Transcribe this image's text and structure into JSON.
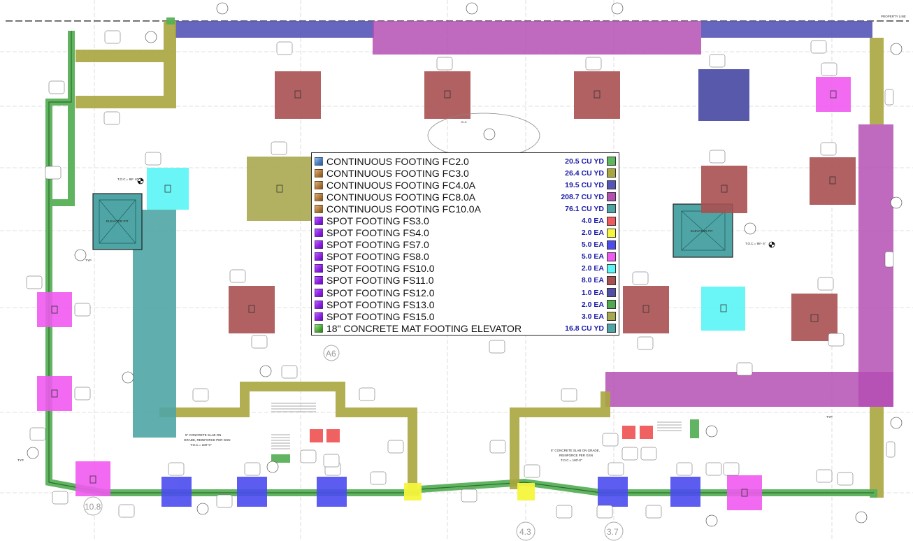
{
  "header": {
    "property_line": "PROPERTY LINE"
  },
  "grid_labels": {
    "a6": "A6",
    "n10_8": "10.8",
    "n4_3": "4.3",
    "n3_7": "3.7"
  },
  "plan_notes": {
    "elev_pit_left": "ELEVATOR PIT",
    "elev_pit_right": "ELEVATOR PIT",
    "toc_left": "T.O.C.= 98'- 6\"",
    "toc_right": "T.O.C.= 98'- 6\"",
    "slab_left_1": "5\" CONCRETE SLAB ON",
    "slab_left_2": "GRADE, REINFORCE PER GSN",
    "slab_left_3": "T.O.C.= 100'-0\"",
    "slab_right_1": "5\" CONCRETE SLAB ON GRADE,",
    "slab_right_2": "REINFORCE PER GSN",
    "slab_right_3": "T.O.C.= 100'-0\"",
    "cj": "C.J.",
    "typ": "TYP"
  },
  "legend": {
    "rows": [
      {
        "label": "CONTINUOUS FOOTING FC2.0",
        "qty": "20.5 CU YD",
        "icon": "blue-cube-icon",
        "swatch": "#5cb85c"
      },
      {
        "label": "CONTINUOUS FOOTING FC3.0",
        "qty": "26.4 CU YD",
        "icon": "brown-cube-icon",
        "swatch": "#a8a63e"
      },
      {
        "label": "CONTINUOUS FOOTING FC4.0A",
        "qty": "19.5 CU YD",
        "icon": "brown-cube-icon",
        "swatch": "#5555b8"
      },
      {
        "label": "CONTINUOUS FOOTING FC8.0A",
        "qty": "208.7 CU YD",
        "icon": "brown-cube-icon",
        "swatch": "#b44fb4"
      },
      {
        "label": "CONTINUOUS FOOTING FC10.0A",
        "qty": "76.1 CU YD",
        "icon": "brown-cube-icon",
        "swatch": "#4fa5a5"
      },
      {
        "label": "SPOT FOOTING FS3.0",
        "qty": "4.0 EA",
        "icon": "purple-square-icon",
        "swatch": "#f05a5a"
      },
      {
        "label": "SPOT FOOTING FS4.0",
        "qty": "2.0 EA",
        "icon": "purple-square-icon",
        "swatch": "#f5f53c"
      },
      {
        "label": "SPOT FOOTING FS7.0",
        "qty": "5.0 EA",
        "icon": "purple-square-icon",
        "swatch": "#4b4bf0"
      },
      {
        "label": "SPOT FOOTING FS8.0",
        "qty": "5.0 EA",
        "icon": "purple-square-icon",
        "swatch": "#f05af0"
      },
      {
        "label": "SPOT FOOTING FS10.0",
        "qty": "2.0 EA",
        "icon": "purple-square-icon",
        "swatch": "#5af5f5"
      },
      {
        "label": "SPOT FOOTING FS11.0",
        "qty": "8.0 EA",
        "icon": "purple-square-icon",
        "swatch": "#a85050"
      },
      {
        "label": "SPOT FOOTING FS12.0",
        "qty": "1.0 EA",
        "icon": "purple-square-icon",
        "swatch": "#5050a8"
      },
      {
        "label": "SPOT FOOTING FS13.0",
        "qty": "2.0 EA",
        "icon": "purple-square-icon",
        "swatch": "#50a850"
      },
      {
        "label": "SPOT FOOTING FS15.0",
        "qty": "3.0 EA",
        "icon": "purple-square-icon",
        "swatch": "#a8a850"
      },
      {
        "label": "18\" CONCRETE MAT FOOTING ELEVATOR",
        "qty": "16.8 CU YD",
        "icon": "green-cube-icon",
        "swatch": "#4fa5a5"
      }
    ]
  },
  "colors": {
    "fc2": "#58b058",
    "fc3": "#a8a63e",
    "fc4": "#5555b8",
    "fc8": "#b44fb4",
    "fc10": "#4fa5a5",
    "fs3": "#f05a5a",
    "fs4": "#f5f53c",
    "fs7": "#4b4bf0",
    "fs8": "#f05af0",
    "fs10": "#5af5f5",
    "fs11": "#a85050",
    "fs12": "#5050a8",
    "fs15": "#a8a850"
  }
}
